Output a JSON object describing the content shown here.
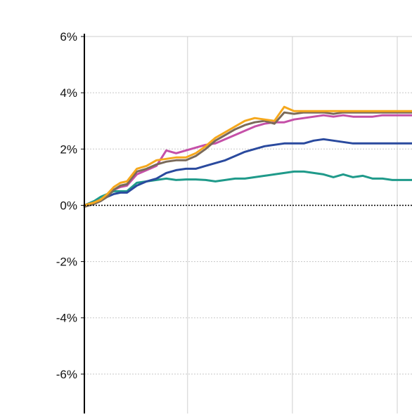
{
  "chart_data": {
    "type": "line",
    "title": "",
    "xlabel": "",
    "ylabel": "",
    "ylim": [
      -7.4,
      6
    ],
    "xlim": [
      0,
      100
    ],
    "y_ticks": [
      {
        "value": 6,
        "label": "6%"
      },
      {
        "value": 4,
        "label": "4%"
      },
      {
        "value": 2,
        "label": "2%"
      },
      {
        "value": 0,
        "label": "0%"
      },
      {
        "value": -2,
        "label": "-2%"
      },
      {
        "value": -4,
        "label": "-4%"
      },
      {
        "value": -6,
        "label": "-6%"
      }
    ],
    "x_gridlines": [
      31.5,
      63.5,
      95.5
    ],
    "baseline": 0,
    "grid": true,
    "legend": "none",
    "series": [
      {
        "color": "#1f9a8a",
        "x": [
          0,
          3,
          5,
          7,
          9,
          11,
          13,
          16,
          19,
          22,
          25,
          28,
          31,
          34,
          37,
          40,
          43,
          46,
          49,
          52,
          55,
          58,
          61,
          64,
          67,
          70,
          73,
          76,
          79,
          82,
          85,
          88,
          91,
          94,
          97,
          100
        ],
        "y": [
          0.0,
          0.15,
          0.3,
          0.4,
          0.5,
          0.5,
          0.5,
          0.8,
          0.85,
          0.9,
          0.95,
          0.9,
          0.92,
          0.92,
          0.9,
          0.85,
          0.9,
          0.95,
          0.95,
          1.0,
          1.05,
          1.1,
          1.15,
          1.2,
          1.2,
          1.15,
          1.1,
          1.0,
          1.1,
          1.0,
          1.05,
          0.95,
          0.95,
          0.9,
          0.9,
          0.9
        ]
      },
      {
        "color": "#2a4a9e",
        "x": [
          0,
          3,
          5,
          7,
          9,
          11,
          13,
          16,
          19,
          22,
          25,
          28,
          31,
          34,
          37,
          40,
          43,
          46,
          49,
          52,
          55,
          58,
          61,
          64,
          67,
          70,
          73,
          76,
          79,
          82,
          85,
          88,
          91,
          94,
          97,
          100
        ],
        "y": [
          0.0,
          0.1,
          0.2,
          0.3,
          0.4,
          0.45,
          0.45,
          0.7,
          0.85,
          0.95,
          1.15,
          1.25,
          1.3,
          1.3,
          1.4,
          1.5,
          1.6,
          1.75,
          1.9,
          2.0,
          2.1,
          2.15,
          2.2,
          2.2,
          2.2,
          2.3,
          2.35,
          2.3,
          2.25,
          2.2,
          2.2,
          2.2,
          2.2,
          2.2,
          2.2,
          2.2
        ]
      },
      {
        "color": "#c550a8",
        "x": [
          0,
          3,
          5,
          7,
          9,
          11,
          13,
          16,
          19,
          22,
          25,
          28,
          31,
          34,
          37,
          40,
          43,
          46,
          49,
          52,
          55,
          58,
          61,
          64,
          67,
          70,
          73,
          76,
          79,
          82,
          85,
          88,
          91,
          94,
          97,
          100
        ],
        "y": [
          0.0,
          0.1,
          0.2,
          0.35,
          0.55,
          0.65,
          0.7,
          1.1,
          1.25,
          1.4,
          1.95,
          1.85,
          1.95,
          2.05,
          2.15,
          2.2,
          2.35,
          2.5,
          2.65,
          2.8,
          2.9,
          2.95,
          2.95,
          3.05,
          3.1,
          3.15,
          3.2,
          3.15,
          3.2,
          3.15,
          3.15,
          3.15,
          3.2,
          3.2,
          3.2,
          3.2
        ]
      },
      {
        "color": "#7a6a5a",
        "x": [
          0,
          3,
          5,
          7,
          9,
          11,
          13,
          16,
          19,
          22,
          25,
          28,
          31,
          34,
          37,
          40,
          43,
          46,
          49,
          52,
          55,
          58,
          61,
          64,
          67,
          70,
          73,
          76,
          79,
          82,
          85,
          88,
          91,
          94,
          97,
          100
        ],
        "y": [
          -0.05,
          0.05,
          0.15,
          0.3,
          0.55,
          0.7,
          0.75,
          1.2,
          1.3,
          1.45,
          1.55,
          1.6,
          1.6,
          1.75,
          2.0,
          2.3,
          2.5,
          2.7,
          2.85,
          2.95,
          3.0,
          2.9,
          3.3,
          3.25,
          3.3,
          3.3,
          3.3,
          3.25,
          3.3,
          3.3,
          3.3,
          3.3,
          3.3,
          3.3,
          3.3,
          3.3
        ]
      },
      {
        "color": "#f5a81d",
        "x": [
          0,
          3,
          5,
          7,
          9,
          11,
          13,
          16,
          19,
          22,
          25,
          28,
          31,
          34,
          37,
          40,
          43,
          46,
          49,
          52,
          55,
          58,
          61,
          64,
          67,
          70,
          73,
          76,
          79,
          82,
          85,
          88,
          91,
          94,
          97,
          100
        ],
        "y": [
          0.0,
          0.1,
          0.2,
          0.4,
          0.65,
          0.8,
          0.85,
          1.3,
          1.4,
          1.6,
          1.65,
          1.7,
          1.7,
          1.85,
          2.1,
          2.4,
          2.6,
          2.8,
          3.0,
          3.1,
          3.05,
          3.0,
          3.5,
          3.35,
          3.35,
          3.35,
          3.35,
          3.35,
          3.35,
          3.35,
          3.35,
          3.35,
          3.35,
          3.35,
          3.35,
          3.35
        ]
      }
    ]
  }
}
